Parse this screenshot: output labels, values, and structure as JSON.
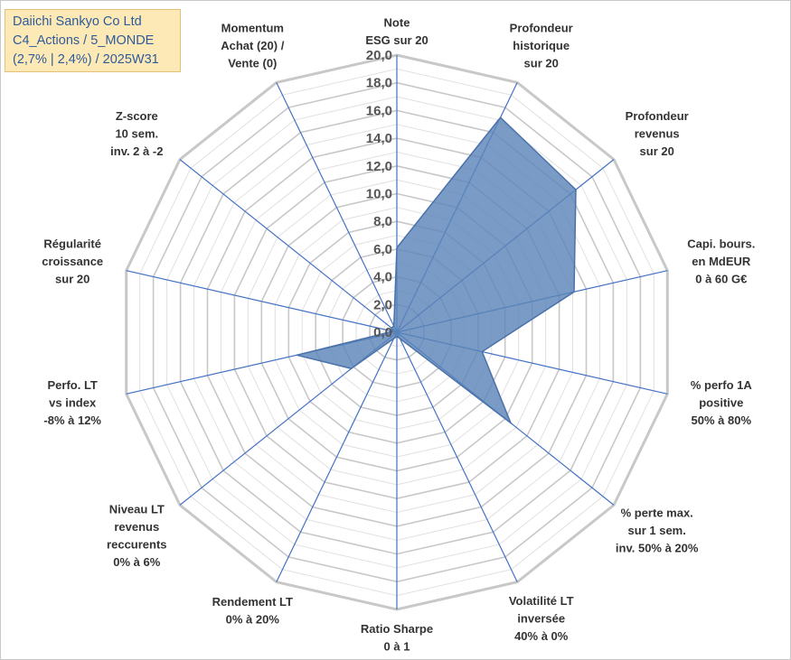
{
  "title_lines": [
    "Daiichi Sankyo Co Ltd",
    "C4_Actions / 5_MONDE",
    "(2,7% | 2,4%) / 2025W31"
  ],
  "colors": {
    "fill": "#5b85b8",
    "stroke": "#4a72aa",
    "axis": "#4472c4",
    "grid_outer": "#c8c8c8",
    "grid_inner": "#e0e0e0",
    "title_bg": "#fde9b5",
    "title_text": "#2e5b9a"
  },
  "chart_data": {
    "type": "radar",
    "r_range": [
      0,
      20
    ],
    "r_ticks": [
      "0,0",
      "2,0",
      "4,0",
      "6,0",
      "8,0",
      "10,0",
      "12,0",
      "14,0",
      "16,0",
      "18,0",
      "20,0"
    ],
    "grid": true,
    "axes": [
      [
        "Note",
        "ESG sur 20"
      ],
      [
        "Profondeur",
        "historique",
        "sur 20"
      ],
      [
        "Profondeur",
        "revenus",
        "sur 20"
      ],
      [
        "Capi. bours.",
        "en MdEUR",
        "0 à 60 G€"
      ],
      [
        "% perfo 1A",
        "positive",
        "50% à 80%"
      ],
      [
        "% perte max.",
        "sur 1 sem.",
        "inv. 50% à 20%"
      ],
      [
        "Volatilité LT",
        "inversée",
        "40% à 0%"
      ],
      [
        "Ratio Sharpe",
        "0 à 1"
      ],
      [
        "Rendement LT",
        "0% à 20%"
      ],
      [
        "Niveau LT",
        "revenus",
        "reccurents",
        "0% à 6%"
      ],
      [
        "Perfo. LT",
        "vs index",
        "-8% à 12%"
      ],
      [
        "Régularité",
        "croissance",
        "sur 20"
      ],
      [
        "Z-score",
        "10 sem.",
        "inv. 2 à -2"
      ],
      [
        "Momentum",
        "Achat (20) /",
        "Vente (0)"
      ]
    ],
    "values": [
      6.1,
      17.2,
      16.5,
      13.1,
      6.3,
      10.5,
      0.5,
      0.3,
      0.5,
      4.2,
      7.4,
      0.3,
      0.5,
      0.5
    ]
  }
}
